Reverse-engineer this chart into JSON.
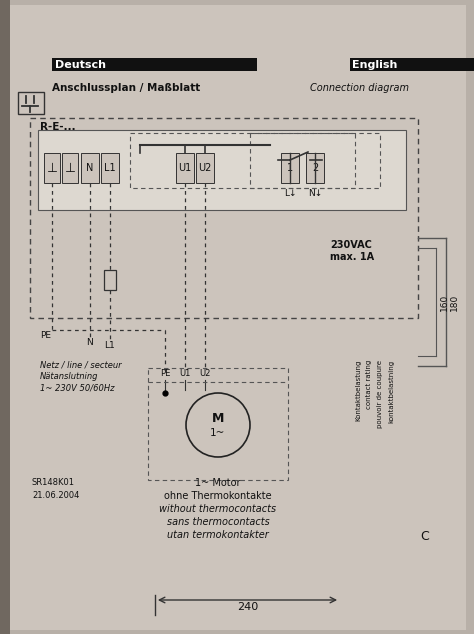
{
  "bg_top_color": "#b8b0a8",
  "bg_bottom_color": "#c8c0b8",
  "paper_color": "#ccc4bc",
  "title_deutsch": "Deutsch",
  "title_english": "English",
  "subtitle_de": "Anschlussplan / Maßblatt",
  "subtitle_en": "Connection diagram",
  "re_label": "R-E-...",
  "term_labels": [
    "⊥",
    "⊥",
    "N",
    "L1",
    "U1",
    "U2",
    "1",
    "2"
  ],
  "bottom_wire_labels": [
    "PE",
    "N",
    "L1"
  ],
  "netz_text": "Netz / line / secteur\nNätanslutning\n1~ 230V 50/60Hz",
  "voltage_text": "230VAC\nmax. 1A",
  "rotated_texts": [
    "Kontaktbelastung",
    "contact rating",
    "pouvoir de coupure",
    "kontaktbelastning"
  ],
  "motor_label_m": "M",
  "motor_label_1": "1~",
  "motor_terminals": [
    "PE",
    "U1",
    "U2"
  ],
  "bottom_text_line1": "1~ Motor",
  "bottom_text_line2": "ohne Thermokontakte",
  "bottom_text_line3": "without thermocontacts",
  "bottom_text_line4": "sans thermocontacts",
  "bottom_text_line5": "utan termokontakter",
  "sr_text": "SR148K01\n21.06.2004",
  "dim_240": "240",
  "dim_180": "180",
  "dim_160": "160",
  "c_label": "C",
  "l_arrow": "L",
  "n_arrow": "N"
}
